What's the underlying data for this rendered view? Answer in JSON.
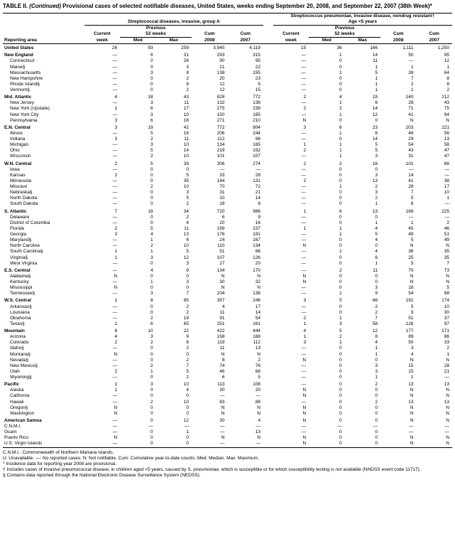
{
  "title_prefix": "TABLE II. ",
  "title_italic": "(Continued)",
  "title_rest": " Provisional cases of selected notifiable diseases, United States, weeks ending September 20, 2008, and September 22, 2007 (38th Week)*",
  "disease1": "Streptococcal diseases, invasive, group A",
  "disease2_line1": "Streptococcus pneumoniae, invasive disease, nondrug resistant†",
  "disease2_line2": "Age <5 years",
  "col_headers": {
    "reporting_area": "Reporting area",
    "current_week": "Current week",
    "previous": "Previous 52 weeks",
    "med": "Med",
    "max": "Max",
    "cum1": "Cum 2008",
    "cum2": "Cum 2007"
  },
  "rows": [
    {
      "l": "United States",
      "a": [
        "26",
        "93",
        "259",
        "3,945",
        "4,119"
      ],
      "b": [
        "15",
        "36",
        "166",
        "1,111",
        "1,250"
      ],
      "g": 1
    },
    {
      "l": "New England",
      "a": [
        "—",
        "6",
        "31",
        "293",
        "315"
      ],
      "b": [
        "—",
        "1",
        "14",
        "50",
        "95"
      ],
      "g": 1
    },
    {
      "l": "Connecticut",
      "a": [
        "—",
        "0",
        "26",
        "90",
        "95"
      ],
      "b": [
        "—",
        "0",
        "11",
        "—",
        "12"
      ],
      "i": 1
    },
    {
      "l": "Maine§",
      "a": [
        "—",
        "0",
        "3",
        "21",
        "22"
      ],
      "b": [
        "—",
        "0",
        "1",
        "1",
        "1"
      ],
      "i": 1
    },
    {
      "l": "Massachusetts",
      "a": [
        "—",
        "3",
        "8",
        "138",
        "155"
      ],
      "b": [
        "—",
        "1",
        "5",
        "39",
        "64"
      ],
      "i": 1
    },
    {
      "l": "New Hampshire",
      "a": [
        "—",
        "0",
        "2",
        "20",
        "23"
      ],
      "b": [
        "—",
        "0",
        "1",
        "7",
        "8"
      ],
      "i": 1
    },
    {
      "l": "Rhode Island§",
      "a": [
        "—",
        "0",
        "8",
        "12",
        "5"
      ],
      "b": [
        "—",
        "0",
        "1",
        "2",
        "8"
      ],
      "i": 1
    },
    {
      "l": "Vermont§",
      "a": [
        "—",
        "0",
        "2",
        "12",
        "15"
      ],
      "b": [
        "—",
        "0",
        "1",
        "1",
        "2"
      ],
      "i": 1
    },
    {
      "l": "Mid. Atlantic",
      "a": [
        "4",
        "18",
        "43",
        "828",
        "772"
      ],
      "b": [
        "2",
        "4",
        "19",
        "140",
        "212"
      ],
      "g": 1
    },
    {
      "l": "New Jersey",
      "a": [
        "—",
        "3",
        "11",
        "132",
        "138"
      ],
      "b": [
        "—",
        "1",
        "6",
        "28",
        "43"
      ],
      "i": 1
    },
    {
      "l": "New York (Upstate)",
      "a": [
        "1",
        "6",
        "17",
        "275",
        "239"
      ],
      "b": [
        "2",
        "2",
        "14",
        "71",
        "75"
      ],
      "i": 1
    },
    {
      "l": "New York City",
      "a": [
        "—",
        "3",
        "10",
        "150",
        "185"
      ],
      "b": [
        "—",
        "1",
        "12",
        "41",
        "94"
      ],
      "i": 1
    },
    {
      "l": "Pennsylvania",
      "a": [
        "3",
        "6",
        "16",
        "271",
        "210"
      ],
      "b": [
        "N",
        "0",
        "0",
        "N",
        "N"
      ],
      "i": 1
    },
    {
      "l": "E.N. Central",
      "a": [
        "3",
        "19",
        "42",
        "772",
        "804"
      ],
      "b": [
        "3",
        "6",
        "23",
        "203",
        "221"
      ],
      "g": 1
    },
    {
      "l": "Illinois",
      "a": [
        "—",
        "5",
        "16",
        "206",
        "244"
      ],
      "b": [
        "—",
        "1",
        "6",
        "46",
        "56"
      ],
      "i": 1
    },
    {
      "l": "Indiana",
      "a": [
        "3",
        "2",
        "11",
        "112",
        "96"
      ],
      "b": [
        "—",
        "0",
        "14",
        "29",
        "13"
      ],
      "i": 1
    },
    {
      "l": "Michigan",
      "a": [
        "—",
        "3",
        "10",
        "134",
        "165"
      ],
      "b": [
        "1",
        "1",
        "5",
        "54",
        "58"
      ],
      "i": 1
    },
    {
      "l": "Ohio",
      "a": [
        "—",
        "5",
        "14",
        "219",
        "192"
      ],
      "b": [
        "2",
        "1",
        "5",
        "43",
        "47"
      ],
      "i": 1
    },
    {
      "l": "Wisconsin",
      "a": [
        "—",
        "2",
        "10",
        "101",
        "107"
      ],
      "b": [
        "—",
        "1",
        "3",
        "31",
        "47"
      ],
      "i": 1
    },
    {
      "l": "W.N. Central",
      "a": [
        "2",
        "5",
        "39",
        "306",
        "274"
      ],
      "b": [
        "2",
        "2",
        "16",
        "101",
        "66"
      ],
      "g": 1
    },
    {
      "l": "Iowa",
      "a": [
        "—",
        "0",
        "0",
        "—",
        "—"
      ],
      "b": [
        "—",
        "0",
        "0",
        "—",
        "—"
      ],
      "i": 1
    },
    {
      "l": "Kansas",
      "a": [
        "2",
        "0",
        "5",
        "33",
        "28"
      ],
      "b": [
        "—",
        "0",
        "3",
        "14",
        "—"
      ],
      "i": 1
    },
    {
      "l": "Minnesota",
      "a": [
        "—",
        "0",
        "35",
        "144",
        "131"
      ],
      "b": [
        "2",
        "0",
        "13",
        "41",
        "38"
      ],
      "i": 1
    },
    {
      "l": "Missouri",
      "a": [
        "—",
        "2",
        "10",
        "70",
        "72"
      ],
      "b": [
        "—",
        "1",
        "2",
        "28",
        "17"
      ],
      "i": 1
    },
    {
      "l": "Nebraska§",
      "a": [
        "—",
        "0",
        "3",
        "31",
        "21"
      ],
      "b": [
        "—",
        "0",
        "3",
        "7",
        "10"
      ],
      "i": 1
    },
    {
      "l": "North Dakota",
      "a": [
        "—",
        "0",
        "5",
        "10",
        "14"
      ],
      "b": [
        "—",
        "0",
        "2",
        "5",
        "1"
      ],
      "i": 1
    },
    {
      "l": "South Dakota",
      "a": [
        "—",
        "0",
        "2",
        "18",
        "8"
      ],
      "b": [
        "—",
        "0",
        "1",
        "6",
        "—"
      ],
      "i": 1
    },
    {
      "l": "S. Atlantic",
      "a": [
        "7",
        "18",
        "34",
        "720",
        "986"
      ],
      "b": [
        "1",
        "6",
        "13",
        "166",
        "225"
      ],
      "g": 1
    },
    {
      "l": "Delaware",
      "a": [
        "—",
        "0",
        "2",
        "6",
        "9"
      ],
      "b": [
        "—",
        "0",
        "0",
        "—",
        "—"
      ],
      "i": 1
    },
    {
      "l": "District of Columbia",
      "a": [
        "—",
        "0",
        "4",
        "20",
        "16"
      ],
      "b": [
        "—",
        "0",
        "1",
        "1",
        "2"
      ],
      "i": 1
    },
    {
      "l": "Florida",
      "a": [
        "2",
        "5",
        "11",
        "199",
        "237"
      ],
      "b": [
        "1",
        "1",
        "4",
        "45",
        "46"
      ],
      "i": 1
    },
    {
      "l": "Georgia",
      "a": [
        "3",
        "4",
        "13",
        "176",
        "191"
      ],
      "b": [
        "—",
        "1",
        "5",
        "49",
        "51"
      ],
      "i": 1
    },
    {
      "l": "Maryland§",
      "a": [
        "—",
        "1",
        "6",
        "24",
        "167"
      ],
      "b": [
        "—",
        "0",
        "4",
        "5",
        "49"
      ],
      "i": 1
    },
    {
      "l": "North Carolina",
      "a": [
        "—",
        "2",
        "10",
        "110",
        "134"
      ],
      "b": [
        "N",
        "0",
        "0",
        "N",
        "N"
      ],
      "i": 1
    },
    {
      "l": "South Carolina§",
      "a": [
        "1",
        "1",
        "5",
        "51",
        "86"
      ],
      "b": [
        "—",
        "1",
        "4",
        "36",
        "35"
      ],
      "i": 1
    },
    {
      "l": "Virginia§",
      "a": [
        "1",
        "3",
        "12",
        "107",
        "126"
      ],
      "b": [
        "—",
        "0",
        "6",
        "25",
        "35"
      ],
      "i": 1
    },
    {
      "l": "West Virginia",
      "a": [
        "—",
        "0",
        "3",
        "27",
        "20"
      ],
      "b": [
        "—",
        "0",
        "1",
        "5",
        "7"
      ],
      "i": 1
    },
    {
      "l": "E.S. Central",
      "a": [
        "—",
        "4",
        "9",
        "134",
        "170"
      ],
      "b": [
        "—",
        "2",
        "11",
        "70",
        "73"
      ],
      "g": 1
    },
    {
      "l": "Alabama§",
      "a": [
        "N",
        "0",
        "0",
        "N",
        "N"
      ],
      "b": [
        "N",
        "0",
        "0",
        "N",
        "N"
      ],
      "i": 1
    },
    {
      "l": "Kentucky",
      "a": [
        "—",
        "1",
        "3",
        "30",
        "32"
      ],
      "b": [
        "N",
        "0",
        "0",
        "N",
        "N"
      ],
      "i": 1
    },
    {
      "l": "Mississippi",
      "a": [
        "N",
        "0",
        "0",
        "N",
        "N"
      ],
      "b": [
        "—",
        "0",
        "3",
        "16",
        "5"
      ],
      "i": 1
    },
    {
      "l": "Tennessee§",
      "a": [
        "—",
        "3",
        "7",
        "104",
        "138"
      ],
      "b": [
        "—",
        "1",
        "9",
        "54",
        "68"
      ],
      "i": 1
    },
    {
      "l": "W.S. Central",
      "a": [
        "1",
        "8",
        "85",
        "357",
        "246"
      ],
      "b": [
        "3",
        "5",
        "66",
        "191",
        "174"
      ],
      "g": 1
    },
    {
      "l": "Arkansas§",
      "a": [
        "—",
        "0",
        "2",
        "4",
        "17"
      ],
      "b": [
        "—",
        "0",
        "2",
        "5",
        "10"
      ],
      "i": 1
    },
    {
      "l": "Louisiana",
      "a": [
        "—",
        "0",
        "2",
        "11",
        "14"
      ],
      "b": [
        "—",
        "0",
        "2",
        "9",
        "30"
      ],
      "i": 1
    },
    {
      "l": "Oklahoma",
      "a": [
        "—",
        "2",
        "19",
        "91",
        "54"
      ],
      "b": [
        "2",
        "1",
        "7",
        "51",
        "37"
      ],
      "i": 1
    },
    {
      "l": "Texas§",
      "a": [
        "1",
        "6",
        "65",
        "251",
        "161"
      ],
      "b": [
        "1",
        "3",
        "58",
        "126",
        "97"
      ],
      "i": 1
    },
    {
      "l": "Mountain",
      "a": [
        "8",
        "10",
        "22",
        "422",
        "444"
      ],
      "b": [
        "4",
        "5",
        "12",
        "177",
        "171"
      ],
      "g": 1
    },
    {
      "l": "Arizona",
      "a": [
        "4",
        "3",
        "9",
        "158",
        "168"
      ],
      "b": [
        "1",
        "2",
        "8",
        "89",
        "86"
      ],
      "i": 1
    },
    {
      "l": "Colorado",
      "a": [
        "2",
        "2",
        "8",
        "119",
        "112"
      ],
      "b": [
        "3",
        "1",
        "4",
        "50",
        "33"
      ],
      "i": 1
    },
    {
      "l": "Idaho§",
      "a": [
        "—",
        "0",
        "2",
        "11",
        "13"
      ],
      "b": [
        "—",
        "0",
        "1",
        "3",
        "2"
      ],
      "i": 1
    },
    {
      "l": "Montana§",
      "a": [
        "N",
        "0",
        "0",
        "N",
        "N"
      ],
      "b": [
        "—",
        "0",
        "1",
        "4",
        "1"
      ],
      "i": 1
    },
    {
      "l": "Nevada§",
      "a": [
        "—",
        "0",
        "2",
        "8",
        "2"
      ],
      "b": [
        "N",
        "0",
        "0",
        "N",
        "N"
      ],
      "i": 1
    },
    {
      "l": "New Mexico§",
      "a": [
        "—",
        "2",
        "7",
        "74",
        "76"
      ],
      "b": [
        "—",
        "0",
        "3",
        "15",
        "28"
      ],
      "i": 1
    },
    {
      "l": "Utah",
      "a": [
        "2",
        "1",
        "5",
        "46",
        "68"
      ],
      "b": [
        "—",
        "0",
        "3",
        "15",
        "21"
      ],
      "i": 1
    },
    {
      "l": "Wyoming§",
      "a": [
        "—",
        "0",
        "2",
        "6",
        "5"
      ],
      "b": [
        "—",
        "0",
        "1",
        "1",
        "—"
      ],
      "i": 1
    },
    {
      "l": "Pacific",
      "a": [
        "1",
        "3",
        "10",
        "113",
        "108"
      ],
      "b": [
        "—",
        "0",
        "2",
        "13",
        "13"
      ],
      "g": 1
    },
    {
      "l": "Alaska",
      "a": [
        "1",
        "0",
        "4",
        "30",
        "20"
      ],
      "b": [
        "N",
        "0",
        "0",
        "N",
        "N"
      ],
      "i": 1
    },
    {
      "l": "California",
      "a": [
        "—",
        "0",
        "0",
        "—",
        "—"
      ],
      "b": [
        "N",
        "0",
        "0",
        "N",
        "N"
      ],
      "i": 1
    },
    {
      "l": "Hawaii",
      "a": [
        "—",
        "2",
        "10",
        "83",
        "88"
      ],
      "b": [
        "—",
        "0",
        "2",
        "13",
        "13"
      ],
      "i": 1
    },
    {
      "l": "Oregon§",
      "a": [
        "N",
        "0",
        "0",
        "N",
        "N"
      ],
      "b": [
        "N",
        "0",
        "0",
        "N",
        "N"
      ],
      "i": 1
    },
    {
      "l": "Washington",
      "a": [
        "N",
        "0",
        "0",
        "N",
        "N"
      ],
      "b": [
        "N",
        "0",
        "0",
        "N",
        "N"
      ],
      "i": 1
    },
    {
      "l": "American Samoa",
      "a": [
        "—",
        "0",
        "12",
        "30",
        "4"
      ],
      "b": [
        "N",
        "0",
        "0",
        "N",
        "N"
      ],
      "g": 1
    },
    {
      "l": "C.N.M.I.",
      "a": [
        "—",
        "—",
        "—",
        "—",
        "—"
      ],
      "b": [
        "—",
        "—",
        "—",
        "—",
        "—"
      ]
    },
    {
      "l": "Guam",
      "a": [
        "—",
        "0",
        "1",
        "—",
        "13"
      ],
      "b": [
        "—",
        "0",
        "0",
        "—",
        "—"
      ]
    },
    {
      "l": "Puerto Rico",
      "a": [
        "N",
        "0",
        "0",
        "N",
        "N"
      ],
      "b": [
        "N",
        "0",
        "0",
        "N",
        "N"
      ]
    },
    {
      "l": "U.S. Virgin Islands",
      "a": [
        "—",
        "0",
        "0",
        "—",
        "—"
      ],
      "b": [
        "N",
        "0",
        "0",
        "N",
        "N"
      ]
    }
  ],
  "footnotes": [
    "C.N.M.I.: Commonwealth of Northern Mariana Islands.",
    "U: Unavailable.    —: No reported cases.    N: Not notifiable.    Cum: Cumulative year-to-date counts.    Med: Median.    Max: Maximum.",
    "* Incidence data for reporting year 2008 are provisional.",
    "† Includes cases of invasive pneumococcal disease, in children aged <5 years, caused by S. pneumoniae, which is susceptible or for which susceptibility testing is not available (NNDSS event code 11717).",
    "§ Contains data reported through the National Electronic Disease Surveillance System (NEDSS)."
  ]
}
